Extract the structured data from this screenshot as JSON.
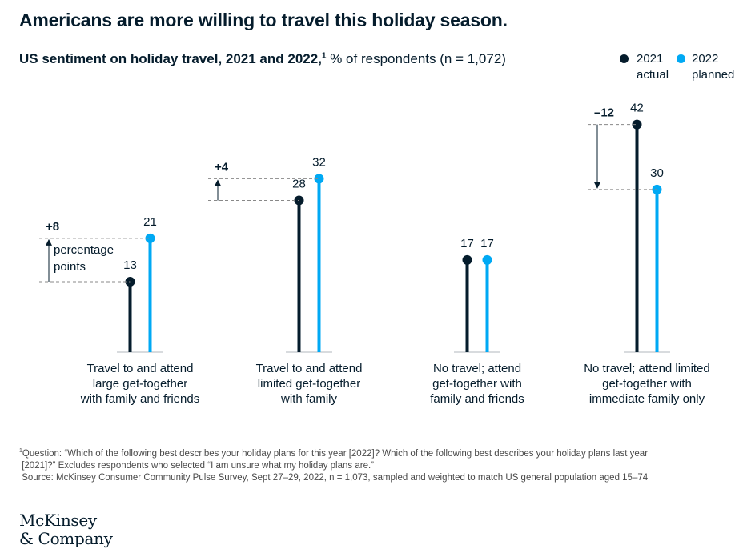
{
  "headline": "Americans are more willing to travel this holiday season.",
  "subtitle": {
    "bold": "US sentiment on holiday travel, 2021 and 2022,",
    "footnote_marker": "1",
    "regular": " % of respondents (n = 1,072)"
  },
  "legend": [
    {
      "line1": "2021",
      "line2": "actual",
      "color": "#051c2c"
    },
    {
      "line1": "2022",
      "line2": "planned",
      "color": "#00a9f4"
    }
  ],
  "chart_data": {
    "type": "lollipop",
    "ylim": [
      0,
      45
    ],
    "grid": false,
    "legend_placement": "top-right",
    "categories": [
      [
        "Travel to and attend",
        "large get-together",
        "with family and friends"
      ],
      [
        "Travel to and attend",
        "limited get-together",
        "with family"
      ],
      [
        "No travel; attend",
        "get-together with",
        "family and friends"
      ],
      [
        "No travel; attend limited",
        "get-together with",
        "immediate family only"
      ]
    ],
    "series": [
      {
        "name": "2021 actual",
        "color": "#051c2c",
        "values": [
          13,
          28,
          17,
          42
        ]
      },
      {
        "name": "2022 planned",
        "color": "#00a9f4",
        "values": [
          21,
          32,
          17,
          30
        ]
      }
    ],
    "annotations": [
      {
        "category": 0,
        "text": "+8",
        "note": [
          "percentage",
          "points"
        ]
      },
      {
        "category": 1,
        "text": "+4"
      },
      {
        "category": 3,
        "text": "–12"
      }
    ]
  },
  "footnote": {
    "marker": "1",
    "line1": "Question: “Which of the following best describes your holiday plans for this year [2022]? Which of the following best describes your holiday plans last year",
    "line2": "[2021]?” Excludes respondents who selected “I am unsure what my holiday plans are.”",
    "line3": "Source: McKinsey Consumer Community Pulse Survey, Sept 27–29, 2022, n = 1,073, sampled and weighted to match US general population aged 15–74"
  },
  "logo": {
    "line1": "McKinsey",
    "line2": "& Company"
  }
}
